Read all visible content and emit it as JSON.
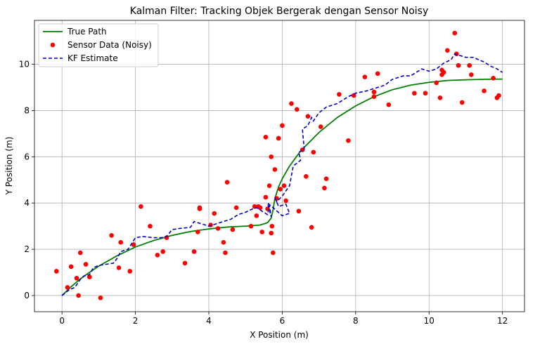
{
  "chart_data": {
    "type": "line",
    "title": "Kalman Filter: Tracking Objek Bergerak dengan Sensor Noisy",
    "xlabel": "X Position (m)",
    "ylabel": "Y Position (m)",
    "xlim": [
      -0.75,
      12.6
    ],
    "ylim": [
      -0.7,
      11.9
    ],
    "xticks": [
      0,
      2,
      4,
      6,
      8,
      10,
      12
    ],
    "yticks": [
      0,
      2,
      4,
      6,
      8,
      10
    ],
    "grid": true,
    "legend": "top-left",
    "series": [
      {
        "name": "True Path",
        "style": "solid",
        "color": "#008000",
        "x": [
          0,
          0.25,
          0.5,
          0.75,
          1,
          1.5,
          2,
          2.5,
          3,
          3.5,
          4,
          4.5,
          5,
          5.4,
          5.6,
          5.7,
          5.75,
          5.8,
          5.9,
          6.0,
          6.2,
          6.5,
          7.0,
          7.5,
          8.0,
          8.5,
          9.0,
          9.5,
          10.0,
          10.5,
          11.0,
          11.5,
          12.0
        ],
        "y": [
          0,
          0.38,
          0.72,
          1.0,
          1.27,
          1.72,
          2.1,
          2.38,
          2.6,
          2.77,
          2.88,
          2.96,
          3.0,
          3.05,
          3.15,
          3.35,
          3.7,
          4.2,
          4.7,
          5.05,
          5.6,
          6.25,
          7.05,
          7.7,
          8.2,
          8.6,
          8.9,
          9.1,
          9.22,
          9.3,
          9.33,
          9.35,
          9.36
        ]
      },
      {
        "name": "Sensor Data (Noisy)",
        "style": "scatter",
        "color": "#ff0000",
        "x": [
          -0.15,
          0.15,
          0.25,
          0.4,
          0.45,
          0.5,
          0.65,
          0.75,
          1.05,
          1.35,
          1.55,
          1.6,
          1.85,
          1.95,
          2.15,
          2.4,
          2.6,
          2.75,
          2.85,
          3.35,
          3.6,
          3.7,
          3.75,
          3.75,
          4.05,
          4.15,
          4.25,
          4.4,
          4.45,
          4.5,
          4.65,
          4.75,
          5.15,
          5.25,
          5.3,
          5.35,
          5.4,
          5.45,
          5.55,
          5.55,
          5.6,
          5.65,
          5.7,
          5.7,
          5.72,
          5.75,
          5.8,
          5.85,
          5.9,
          5.95,
          6.0,
          6.05,
          6.1,
          6.25,
          6.4,
          6.45,
          6.55,
          6.65,
          6.7,
          6.8,
          6.85,
          7.05,
          7.15,
          7.2,
          7.55,
          7.8,
          7.95,
          8.25,
          8.5,
          8.5,
          8.6,
          8.9,
          9.6,
          9.9,
          10.2,
          10.3,
          10.35,
          10.35,
          10.4,
          10.5,
          10.7,
          10.75,
          10.8,
          10.9,
          11.1,
          11.15,
          11.5,
          11.75,
          11.85,
          11.9
        ],
        "y": [
          1.05,
          0.35,
          1.25,
          0.75,
          0.0,
          1.85,
          1.35,
          0.8,
          -0.1,
          2.6,
          1.2,
          2.3,
          1.05,
          2.2,
          3.85,
          3.0,
          1.75,
          1.9,
          2.5,
          1.4,
          1.9,
          2.75,
          3.8,
          3.75,
          3.05,
          3.55,
          2.9,
          2.3,
          1.85,
          4.9,
          2.85,
          3.8,
          3.0,
          3.85,
          3.45,
          3.85,
          3.8,
          2.75,
          6.85,
          4.25,
          3.75,
          4.75,
          6.0,
          2.7,
          3.0,
          1.85,
          5.45,
          4.2,
          6.8,
          4.6,
          7.35,
          4.75,
          4.1,
          8.3,
          8.05,
          3.65,
          6.3,
          5.15,
          7.75,
          2.95,
          6.2,
          7.3,
          4.65,
          5.05,
          8.7,
          6.7,
          8.65,
          9.45,
          8.6,
          8.8,
          9.6,
          8.25,
          8.75,
          8.75,
          9.2,
          8.55,
          9.55,
          9.75,
          9.65,
          10.6,
          11.35,
          10.45,
          9.95,
          8.35,
          9.95,
          9.55,
          8.85,
          9.4,
          8.55,
          8.65
        ]
      },
      {
        "name": "KF Estimate",
        "style": "dashed",
        "color": "#0000cc",
        "x": [
          0,
          0.2,
          0.35,
          0.5,
          0.6,
          0.75,
          0.85,
          1.0,
          1.2,
          1.4,
          1.5,
          1.6,
          1.8,
          2.0,
          2.2,
          2.5,
          2.7,
          2.85,
          3.0,
          3.2,
          3.5,
          3.6,
          3.8,
          4.0,
          4.2,
          4.4,
          4.6,
          4.8,
          5.0,
          5.2,
          5.3,
          5.4,
          5.5,
          5.6,
          5.65,
          5.7,
          5.6,
          5.75,
          6.0,
          6.2,
          6.1,
          5.9,
          5.8,
          5.85,
          6.0,
          6.2,
          6.3,
          6.5,
          6.45,
          6.6,
          6.55,
          6.7,
          6.8,
          6.85,
          7.0,
          7.2,
          7.5,
          7.8,
          8.0,
          8.3,
          8.5,
          8.8,
          9.0,
          9.3,
          9.5,
          9.8,
          10.0,
          10.2,
          10.4,
          10.6,
          10.7,
          10.9,
          11.0,
          11.2,
          11.5,
          11.7,
          11.8,
          12.0
        ],
        "y": [
          0,
          0.25,
          0.35,
          0.7,
          0.85,
          0.9,
          1.2,
          1.3,
          1.35,
          1.4,
          1.6,
          1.9,
          2.0,
          2.5,
          2.55,
          2.5,
          2.5,
          2.55,
          2.85,
          2.9,
          2.95,
          3.2,
          3.1,
          3.0,
          3.1,
          3.2,
          3.3,
          3.5,
          3.6,
          3.75,
          3.8,
          3.7,
          3.6,
          3.5,
          3.9,
          3.4,
          4.0,
          3.8,
          3.45,
          3.55,
          3.95,
          3.85,
          4.25,
          4.05,
          4.3,
          4.75,
          5.6,
          5.85,
          6.2,
          6.3,
          7.2,
          7.35,
          7.7,
          7.55,
          7.9,
          8.15,
          8.3,
          8.6,
          8.75,
          8.85,
          8.95,
          9.1,
          9.35,
          9.5,
          9.5,
          9.8,
          9.7,
          9.8,
          10.05,
          10.2,
          10.45,
          10.35,
          10.3,
          10.3,
          10.1,
          9.9,
          9.85,
          9.65
        ]
      }
    ]
  }
}
